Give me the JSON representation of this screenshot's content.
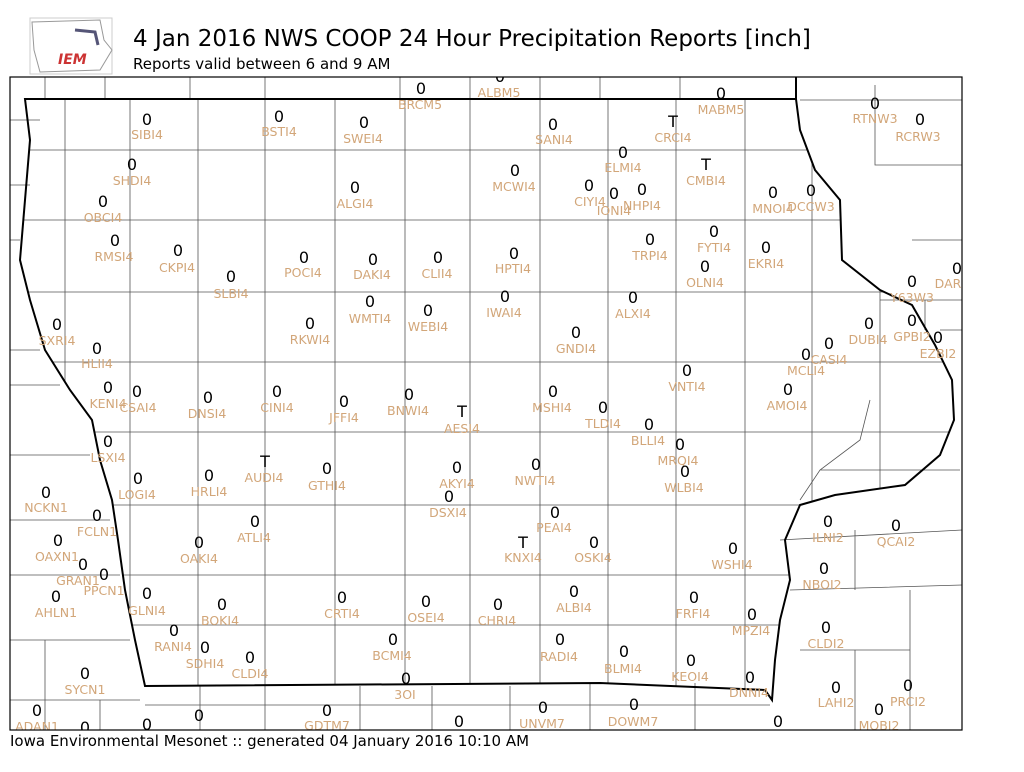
{
  "header": {
    "logo_text": "IEM",
    "title": "4 Jan 2016 NWS COOP 24 Hour Precipitation Reports [inch]",
    "subtitle": "Reports valid between 6 and 9 AM"
  },
  "footer": "Iowa Environmental Mesonet :: generated 04 January 2016 10:10 AM",
  "stations": [
    {
      "id": "BRCM5",
      "value": "0"
    },
    {
      "id": "ALBM5",
      "value": "0"
    },
    {
      "id": "MABM5",
      "value": "0"
    },
    {
      "id": "SIBI4",
      "value": "0"
    },
    {
      "id": "BSTI4",
      "value": "0"
    },
    {
      "id": "SWEI4",
      "value": "0"
    },
    {
      "id": "SANI4",
      "value": "0"
    },
    {
      "id": "CRCI4",
      "value": "T"
    },
    {
      "id": "RTNW3",
      "value": "0"
    },
    {
      "id": "RCRW3",
      "value": "0"
    },
    {
      "id": "ELMI4",
      "value": "0"
    },
    {
      "id": "CMBI4",
      "value": "T"
    },
    {
      "id": "SHDI4",
      "value": "0"
    },
    {
      "id": "MCWI4",
      "value": "0"
    },
    {
      "id": "CIYI4",
      "value": "0"
    },
    {
      "id": "IONI4",
      "value": "0"
    },
    {
      "id": "NHPI4",
      "value": "0"
    },
    {
      "id": "ALGI4",
      "value": "0"
    },
    {
      "id": "MNOI4",
      "value": "0"
    },
    {
      "id": "DCCW3",
      "value": "0"
    },
    {
      "id": "OBCI4",
      "value": "0"
    },
    {
      "id": "FYTI4",
      "value": "0"
    },
    {
      "id": "RMSI4",
      "value": "0"
    },
    {
      "id": "CKPI4",
      "value": "0"
    },
    {
      "id": "TRPI4",
      "value": "0"
    },
    {
      "id": "EKRI4",
      "value": "0"
    },
    {
      "id": "POCI4",
      "value": "0"
    },
    {
      "id": "DAKI4",
      "value": "0"
    },
    {
      "id": "CLII4",
      "value": "0"
    },
    {
      "id": "HPTI4",
      "value": "0"
    },
    {
      "id": "OLNI4",
      "value": "0"
    },
    {
      "id": "SLBI4",
      "value": "0"
    },
    {
      "id": "Y63W3",
      "value": "0"
    },
    {
      "id": "DAR",
      "value": "0"
    },
    {
      "id": "IWAI4",
      "value": "0"
    },
    {
      "id": "ALXI4",
      "value": "0"
    },
    {
      "id": "WMTI4",
      "value": "0"
    },
    {
      "id": "WEBI4",
      "value": "0"
    },
    {
      "id": "RKWI4",
      "value": "0"
    },
    {
      "id": "SXRI4",
      "value": "0"
    },
    {
      "id": "DUBI4",
      "value": "0"
    },
    {
      "id": "GPBI2",
      "value": "0"
    },
    {
      "id": "EZBI2",
      "value": "0"
    },
    {
      "id": "GNDI4",
      "value": "0"
    },
    {
      "id": "HLII4",
      "value": "0"
    },
    {
      "id": "CASI4",
      "value": "0"
    },
    {
      "id": "MCLI4",
      "value": "0"
    },
    {
      "id": "VNTI4",
      "value": "0"
    },
    {
      "id": "AMOI4",
      "value": "0"
    },
    {
      "id": "KENI4",
      "value": "0"
    },
    {
      "id": "CSAI4",
      "value": "0"
    },
    {
      "id": "DNSI4",
      "value": "0"
    },
    {
      "id": "CINI4",
      "value": "0"
    },
    {
      "id": "JFFI4",
      "value": "0"
    },
    {
      "id": "BNWI4",
      "value": "0"
    },
    {
      "id": "MSHI4",
      "value": "0"
    },
    {
      "id": "TLDI4",
      "value": "0"
    },
    {
      "id": "AESI4",
      "value": "T"
    },
    {
      "id": "BLLI4",
      "value": "0"
    },
    {
      "id": "LSXI4",
      "value": "0"
    },
    {
      "id": "MRQI4",
      "value": "0"
    },
    {
      "id": "AUDI4",
      "value": "T"
    },
    {
      "id": "GTHI4",
      "value": "0"
    },
    {
      "id": "AKYI4",
      "value": "0"
    },
    {
      "id": "NWTI4",
      "value": "0"
    },
    {
      "id": "WLBI4",
      "value": "0"
    },
    {
      "id": "LOGI4",
      "value": "0"
    },
    {
      "id": "HRLI4",
      "value": "0"
    },
    {
      "id": "NCKN1",
      "value": "0"
    },
    {
      "id": "DSXI4",
      "value": "0"
    },
    {
      "id": "FCLN1",
      "value": "0"
    },
    {
      "id": "PEAI4",
      "value": "0"
    },
    {
      "id": "ATLI4",
      "value": "0"
    },
    {
      "id": "KNXI4",
      "value": "T"
    },
    {
      "id": "OSKI4",
      "value": "0"
    },
    {
      "id": "OAKI4",
      "value": "0"
    },
    {
      "id": "ILNI2",
      "value": "0"
    },
    {
      "id": "QCAI2",
      "value": "0"
    },
    {
      "id": "OAXN1",
      "value": "0"
    },
    {
      "id": "WSHI4",
      "value": "0"
    },
    {
      "id": "GRAN1",
      "value": "0"
    },
    {
      "id": "PPCN1",
      "value": "0"
    },
    {
      "id": "GLNI4",
      "value": "0"
    },
    {
      "id": "NBOI2",
      "value": "0"
    },
    {
      "id": "ALBI4",
      "value": "0"
    },
    {
      "id": "CRTI4",
      "value": "0"
    },
    {
      "id": "OSEI4",
      "value": "0"
    },
    {
      "id": "CHRI4",
      "value": "0"
    },
    {
      "id": "FRFI4",
      "value": "0"
    },
    {
      "id": "AHLN1",
      "value": "0"
    },
    {
      "id": "BOKI4",
      "value": "0"
    },
    {
      "id": "MPZI4",
      "value": "0"
    },
    {
      "id": "CLDI2",
      "value": "0"
    },
    {
      "id": "RANI4",
      "value": "0"
    },
    {
      "id": "BCMI4",
      "value": "0"
    },
    {
      "id": "RADI4",
      "value": "0"
    },
    {
      "id": "BLMI4",
      "value": "0"
    },
    {
      "id": "SDHI4",
      "value": "0"
    },
    {
      "id": "CLDI4",
      "value": "0"
    },
    {
      "id": "KEOI4",
      "value": "0"
    },
    {
      "id": "SYCN1",
      "value": "0"
    },
    {
      "id": "3OI",
      "value": "0"
    },
    {
      "id": "DNNI4",
      "value": "0"
    },
    {
      "id": "LAHI2",
      "value": "0"
    },
    {
      "id": "PRCI2",
      "value": "0"
    },
    {
      "id": "ADAN1",
      "value": "0"
    },
    {
      "id": "UNVM7",
      "value": "0"
    },
    {
      "id": "DOWM7",
      "value": "0"
    },
    {
      "id": "MOBI2",
      "value": "0"
    },
    {
      "id": "GDTM7",
      "value": "0"
    },
    {
      "value": "0"
    },
    {
      "value": "0"
    },
    {
      "value": "0"
    },
    {
      "value": "0"
    },
    {
      "value": "0"
    }
  ]
}
